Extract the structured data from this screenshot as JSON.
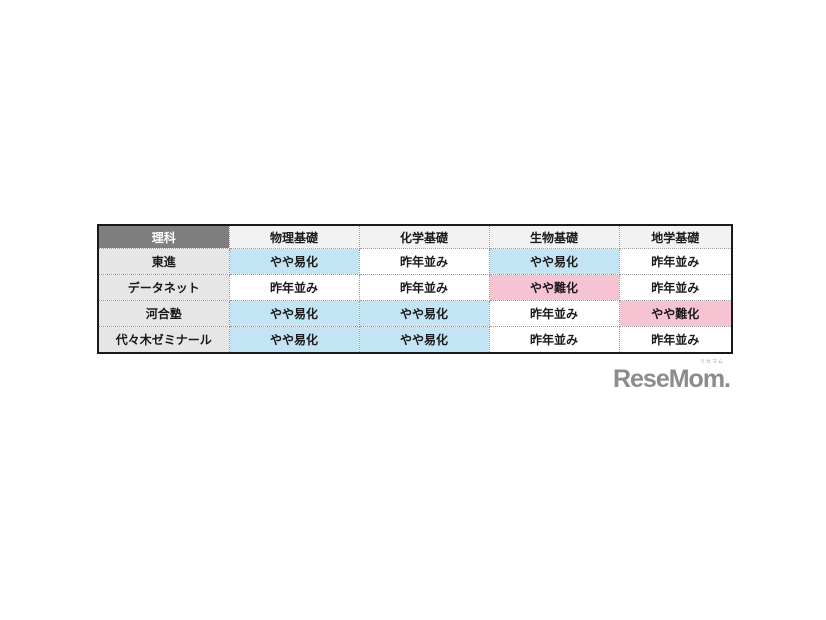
{
  "table": {
    "corner_label": "理科",
    "columns": [
      "物理基礎",
      "化学基礎",
      "生物基礎",
      "地学基礎"
    ],
    "rows": [
      {
        "label": "東進",
        "cells": [
          {
            "text": "やや易化",
            "status": "easier"
          },
          {
            "text": "昨年並み",
            "status": "same"
          },
          {
            "text": "やや易化",
            "status": "easier"
          },
          {
            "text": "昨年並み",
            "status": "same"
          }
        ]
      },
      {
        "label": "データネット",
        "cells": [
          {
            "text": "昨年並み",
            "status": "same"
          },
          {
            "text": "昨年並み",
            "status": "same"
          },
          {
            "text": "やや難化",
            "status": "harder"
          },
          {
            "text": "昨年並み",
            "status": "same"
          }
        ]
      },
      {
        "label": "河合塾",
        "cells": [
          {
            "text": "やや易化",
            "status": "easier"
          },
          {
            "text": "やや易化",
            "status": "easier"
          },
          {
            "text": "昨年並み",
            "status": "same"
          },
          {
            "text": "やや難化",
            "status": "harder"
          }
        ]
      },
      {
        "label": "代々木ゼミナール",
        "cells": [
          {
            "text": "やや易化",
            "status": "easier"
          },
          {
            "text": "やや易化",
            "status": "easier"
          },
          {
            "text": "昨年並み",
            "status": "same"
          },
          {
            "text": "昨年並み",
            "status": "same"
          }
        ]
      }
    ]
  },
  "colors": {
    "easier_bg": "#c2e4f4",
    "same_bg": "#ffffff",
    "harder_bg": "#f6c3d3",
    "corner_bg": "#7f7f7f",
    "corner_text": "#ffffff",
    "colhead_bg": "#f2f2f2",
    "rowlabel_bg": "#e6e6e6",
    "logo_gray": "#8c8c8c"
  },
  "logo": {
    "ruby": "リセマム",
    "word": "ReseMom."
  }
}
